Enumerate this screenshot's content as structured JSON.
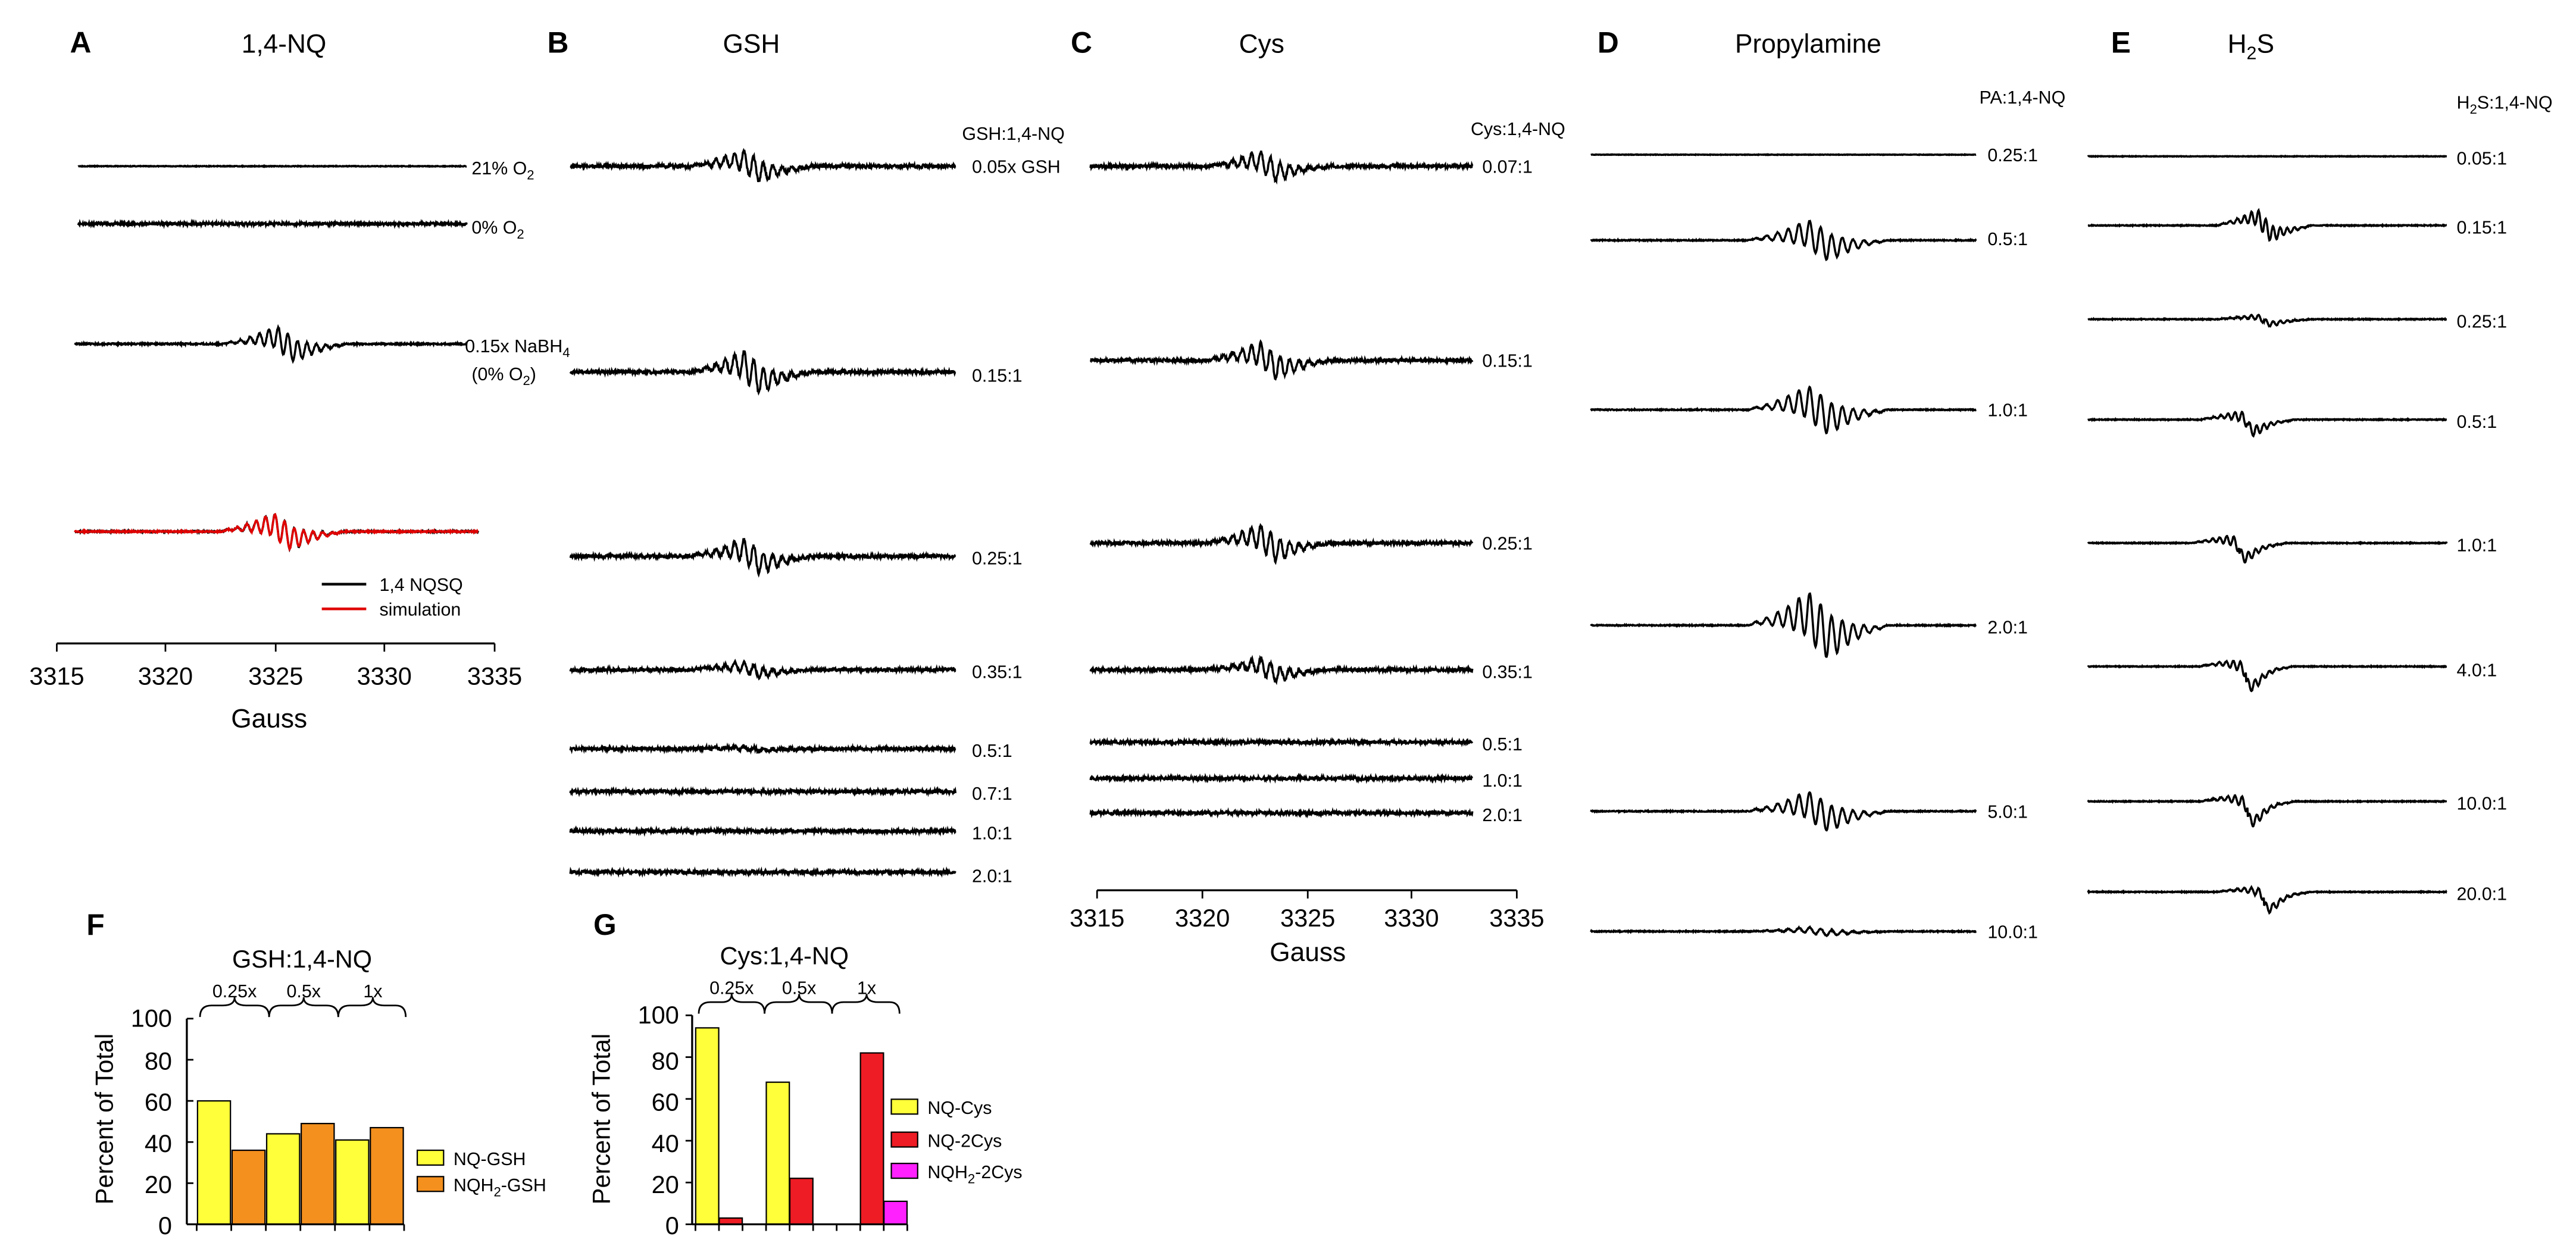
{
  "panels": {
    "A": {
      "letter": "A",
      "title": "1,4-NQ",
      "labels": [
        "21% O",
        "0% O",
        "0.15x NaBH",
        "(0% O"
      ],
      "subs": [
        "2",
        "2",
        "4",
        "2"
      ],
      "closing": ")",
      "legend": {
        "black": "1,4 NQSQ",
        "red": "simulation"
      },
      "axis": {
        "ticks": [
          "3315",
          "3320",
          "3325",
          "3330",
          "3335"
        ],
        "xlabel": "Gauss"
      }
    },
    "B": {
      "letter": "B",
      "title": "GSH",
      "ratio_header": "GSH:1,4-NQ",
      "labels": [
        "0.05x GSH",
        "0.15:1",
        "0.25:1",
        "0.35:1",
        "0.5:1",
        "0.7:1",
        "1.0:1",
        "2.0:1"
      ]
    },
    "C": {
      "letter": "C",
      "title": "Cys",
      "ratio_header": "Cys:1,4-NQ",
      "labels": [
        "0.07:1",
        "0.15:1",
        "0.25:1",
        "0.35:1",
        "0.5:1",
        "1.0:1",
        "2.0:1"
      ],
      "axis": {
        "ticks": [
          "3315",
          "3320",
          "3325",
          "3330",
          "3335"
        ],
        "xlabel": "Gauss"
      }
    },
    "D": {
      "letter": "D",
      "title": "Propylamine",
      "ratio_header": "PA:1,4-NQ",
      "labels": [
        "0.25:1",
        "0.5:1",
        "1.0:1",
        "2.0:1",
        "5.0:1",
        "10.0:1"
      ]
    },
    "E": {
      "letter": "E",
      "title_main": "H",
      "title_sub": "2",
      "title_tail": "S",
      "ratio_main": "H",
      "ratio_sub": "2",
      "ratio_tail": "S:1,4-NQ",
      "labels": [
        "0.05:1",
        "0.15:1",
        "0.25:1",
        "0.5:1",
        "1.0:1",
        "4.0:1",
        "10.0:1",
        "20.0:1"
      ]
    }
  },
  "chart_data": [
    {
      "panel": "F",
      "type": "bar",
      "title": "GSH:1,4-NQ",
      "ylabel": "Percent of Total",
      "ylim": [
        0,
        100
      ],
      "yticks": [
        "0",
        "20",
        "40",
        "60",
        "80",
        "100"
      ],
      "groups": [
        "0.25x",
        "0.5x",
        "1x"
      ],
      "series": [
        {
          "name": "NQ-GSH",
          "legend_main": "NQ-GSH",
          "legend_sub": "",
          "legend_tail": "",
          "color": "#ffff3a",
          "values": [
            60,
            44,
            41
          ]
        },
        {
          "name": "NQH2-GSH",
          "legend_main": "NQH",
          "legend_sub": "2",
          "legend_tail": "-GSH",
          "color": "#f4901e",
          "values": [
            36,
            49,
            47
          ]
        }
      ]
    },
    {
      "panel": "G",
      "type": "bar",
      "title": "Cys:1,4-NQ",
      "ylabel": "Percent of Total",
      "ylim": [
        0,
        100
      ],
      "yticks": [
        "0",
        "20",
        "40",
        "60",
        "80",
        "100"
      ],
      "groups": [
        "0.25x",
        "0.5x",
        "1x"
      ],
      "series": [
        {
          "name": "NQ-Cys",
          "legend_main": "NQ-Cys",
          "legend_sub": "",
          "legend_tail": "",
          "color": "#ffff3a",
          "values": [
            94,
            68,
            0
          ]
        },
        {
          "name": "NQ-2Cys",
          "legend_main": "NQ-2Cys",
          "legend_sub": "",
          "legend_tail": "",
          "color": "#ee1c24",
          "values": [
            3,
            22,
            82
          ]
        },
        {
          "name": "NQH2-2Cys",
          "legend_main": "NQH",
          "legend_sub": "2",
          "legend_tail": "-2Cys",
          "color": "#ff22ff",
          "values": [
            0,
            0,
            11
          ]
        }
      ]
    }
  ]
}
